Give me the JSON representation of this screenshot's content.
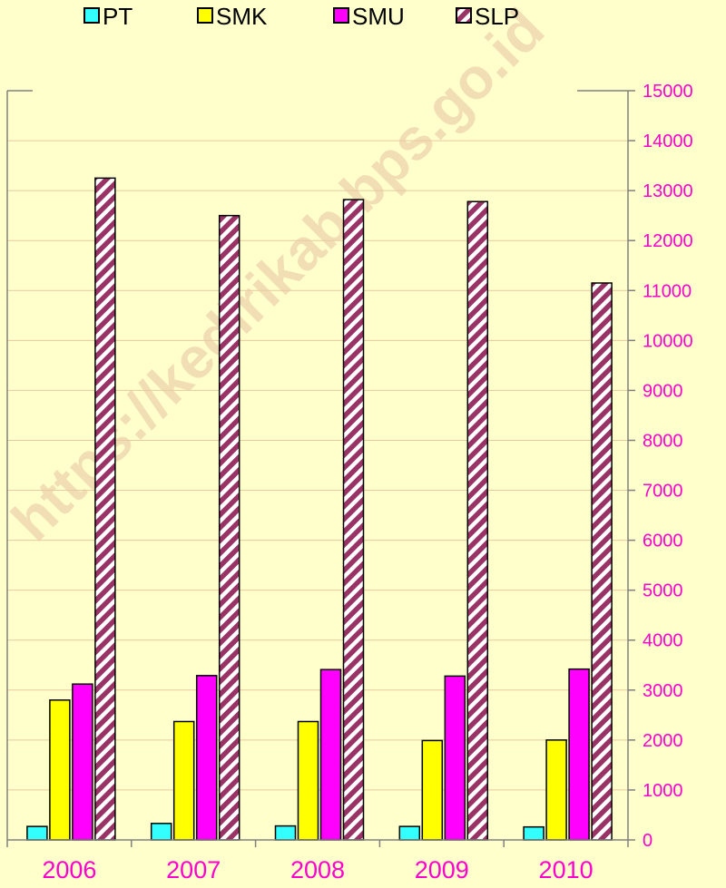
{
  "watermark_text": "https://kedirikab.bps.go.id",
  "chart_data": {
    "type": "bar",
    "categories": [
      "2006",
      "2007",
      "2008",
      "2009",
      "2010"
    ],
    "series": [
      {
        "name": "PT",
        "values": [
          270,
          330,
          280,
          270,
          260
        ],
        "color": "#33FFFF"
      },
      {
        "name": "SMK",
        "values": [
          2800,
          2370,
          2370,
          1990,
          2000
        ],
        "color": "#FFFF00"
      },
      {
        "name": "SMU",
        "values": [
          3120,
          3290,
          3410,
          3280,
          3420
        ],
        "color": "#FF00FF"
      },
      {
        "name": "SLP",
        "values": [
          13250,
          12500,
          12820,
          12780,
          11150
        ],
        "color": "#993366",
        "pattern": "diagonal-stripes"
      }
    ],
    "yaxis_side": "right",
    "ylim": [
      0,
      15000
    ],
    "yticks": [
      "0",
      "1000",
      "2000",
      "3000",
      "4000",
      "5000",
      "6000",
      "7000",
      "8000",
      "9000",
      "10000",
      "11000",
      "12000",
      "13000",
      "14000",
      "15000"
    ],
    "grid": true,
    "legend_position": "top",
    "title": "",
    "xlabel": "",
    "ylabel": "",
    "colors": {
      "background": "#FFFFCC",
      "gridline": "#E8C9A0",
      "axis_text": "#FF00CC",
      "axis_line": "#808080"
    }
  }
}
